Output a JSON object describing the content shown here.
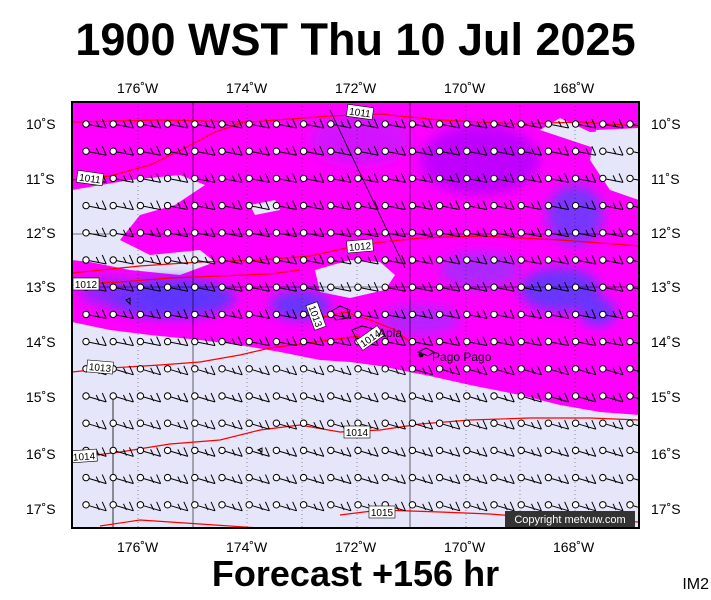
{
  "title": "1900 WST Thu 10 Jul 2025",
  "footer": "Forecast +156 hr",
  "product_code": "IM2",
  "copyright": "Copyright metvuw.com",
  "lon_labels": [
    "176˚W",
    "174˚W",
    "172˚W",
    "170˚W",
    "168˚W"
  ],
  "lat_labels": [
    "10˚S",
    "11˚S",
    "12˚S",
    "13˚S",
    "14˚S",
    "15˚S",
    "16˚S",
    "17˚S"
  ],
  "places": [
    {
      "name": "Apia"
    },
    {
      "name": "Pago Pago"
    }
  ],
  "isobar_labels": [
    "1011",
    "1011",
    "1012",
    "1012",
    "1013",
    "1013",
    "1014",
    "1014",
    "1014",
    "1015"
  ],
  "colors": {
    "precip_light": "#e6e6fa",
    "precip_medium": "#ff00ff",
    "precip_heavy": "#b000ff",
    "precip_very_heavy": "#7a2bff",
    "precip_extreme": "#4040ff",
    "isobar": "#ff0000",
    "coast": "#000000"
  }
}
